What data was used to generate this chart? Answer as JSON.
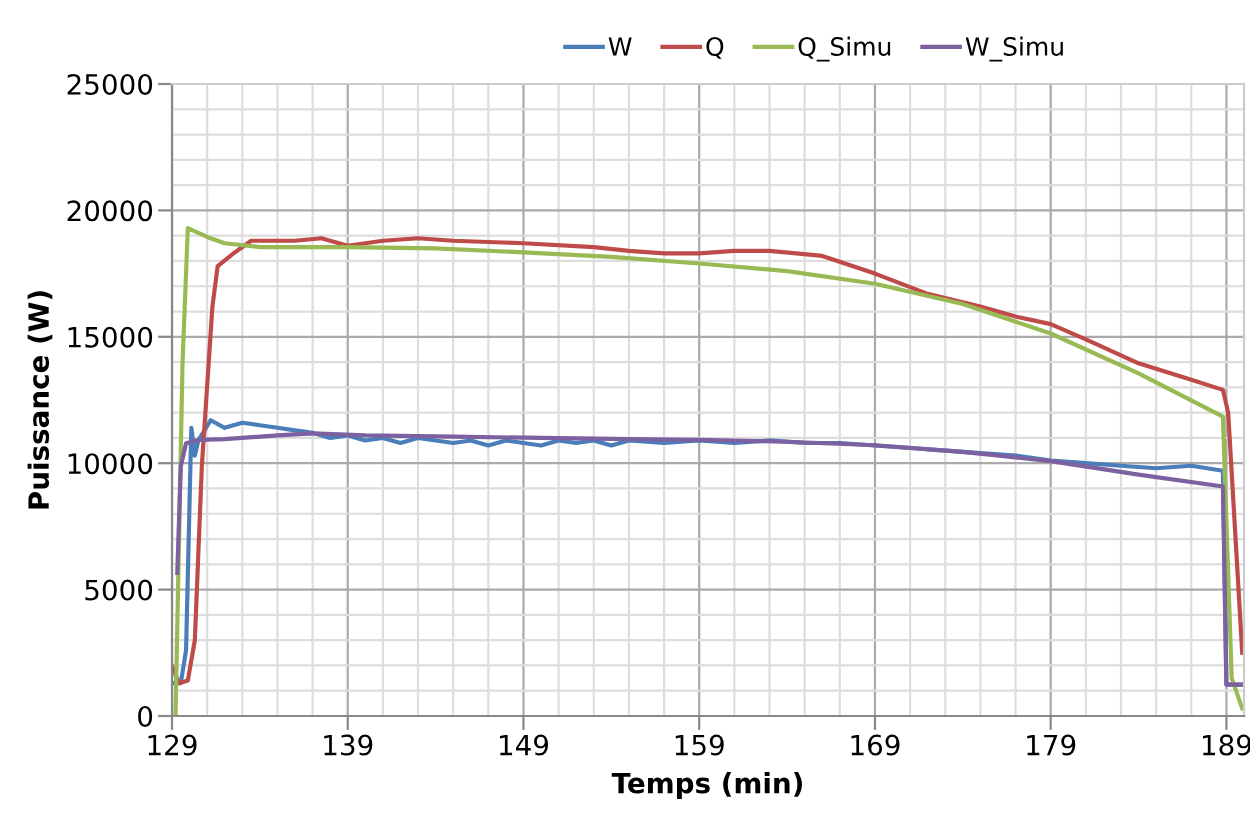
{
  "chart_data": {
    "type": "line",
    "xlabel": "Temps (min)",
    "ylabel": "Puissance (W)",
    "xlim": [
      129,
      190
    ],
    "ylim": [
      0,
      25000
    ],
    "xticks": [
      129,
      {
        "value": 131,
        "label": null
      },
      {
        "value": 133,
        "label": null
      },
      {
        "value": 135,
        "label": null
      },
      {
        "value": 137,
        "label": null
      },
      139,
      {
        "value": 141,
        "label": null
      },
      {
        "value": 143,
        "label": null
      },
      {
        "value": 145,
        "label": null
      },
      {
        "value": 147,
        "label": null
      },
      149,
      {
        "value": 151,
        "label": null
      },
      {
        "value": 153,
        "label": null
      },
      {
        "value": 155,
        "label": null
      },
      {
        "value": 157,
        "label": null
      },
      159,
      {
        "value": 161,
        "label": null
      },
      {
        "value": 163,
        "label": null
      },
      {
        "value": 165,
        "label": null
      },
      {
        "value": 167,
        "label": null
      },
      169,
      {
        "value": 171,
        "label": null
      },
      {
        "value": 173,
        "label": null
      },
      {
        "value": 175,
        "label": null
      },
      {
        "value": 177,
        "label": null
      },
      179,
      {
        "value": 181,
        "label": null
      },
      {
        "value": 183,
        "label": null
      },
      {
        "value": 185,
        "label": null
      },
      {
        "value": 187,
        "label": null
      },
      189
    ],
    "yticks": [
      0,
      {
        "value": 1000,
        "label": null
      },
      {
        "value": 2000,
        "label": null
      },
      {
        "value": 3000,
        "label": null
      },
      {
        "value": 4000,
        "label": null
      },
      5000,
      {
        "value": 6000,
        "label": null
      },
      {
        "value": 7000,
        "label": null
      },
      {
        "value": 8000,
        "label": null
      },
      {
        "value": 9000,
        "label": null
      },
      10000,
      {
        "value": 11000,
        "label": null
      },
      {
        "value": 12000,
        "label": null
      },
      {
        "value": 13000,
        "label": null
      },
      {
        "value": 14000,
        "label": null
      },
      15000,
      {
        "value": 16000,
        "label": null
      },
      {
        "value": 17000,
        "label": null
      },
      {
        "value": 18000,
        "label": null
      },
      {
        "value": 19000,
        "label": null
      },
      20000,
      {
        "value": 21000,
        "label": null
      },
      {
        "value": 22000,
        "label": null
      },
      {
        "value": 23000,
        "label": null
      },
      {
        "value": 24000,
        "label": null
      },
      25000
    ],
    "grid": true,
    "legend": "top",
    "marker": "none",
    "line_style": "solid",
    "series": [
      {
        "name": "W",
        "color": "#4a7ebb",
        "x": [
          129,
          129.5,
          129.8,
          130.1,
          130.3,
          130.5,
          131.2,
          132,
          133,
          134,
          135,
          136,
          137,
          138,
          139,
          140,
          141,
          142,
          143,
          144,
          145,
          146,
          147,
          148,
          149,
          150,
          151,
          152,
          153,
          154,
          155,
          157,
          159,
          161,
          163,
          165,
          167,
          169,
          171,
          173,
          175,
          177,
          179,
          181,
          183,
          185,
          187,
          188.8,
          189,
          189.9
        ],
        "values": [
          1300,
          1300,
          2600,
          11400,
          10300,
          10900,
          11700,
          11400,
          11600,
          11500,
          11400,
          11300,
          11200,
          11000,
          11100,
          10900,
          11000,
          10800,
          11000,
          10900,
          10800,
          10900,
          10700,
          10900,
          10800,
          10700,
          10900,
          10800,
          10900,
          10700,
          10900,
          10800,
          10900,
          10800,
          10900,
          10800,
          10800,
          10700,
          10600,
          10500,
          10400,
          10300,
          10100,
          10000,
          9900,
          9800,
          9900,
          9700,
          1240,
          1240
        ]
      },
      {
        "name": "Q",
        "color": "#be4b48",
        "x": [
          129,
          129.4,
          129.9,
          130.3,
          130.7,
          131.3,
          131.6,
          132.5,
          133.5,
          136,
          137.5,
          139,
          141,
          143,
          145,
          149,
          153,
          155,
          157,
          159,
          161,
          163,
          166,
          169,
          172,
          175,
          177,
          179,
          181,
          184,
          187,
          188.8,
          189.1,
          189.9
        ],
        "values": [
          1970,
          1300,
          1400,
          3000,
          9900,
          16200,
          17800,
          18300,
          18800,
          18800,
          18900,
          18600,
          18800,
          18900,
          18800,
          18700,
          18550,
          18400,
          18300,
          18300,
          18400,
          18400,
          18200,
          17500,
          16700,
          16200,
          15800,
          15500,
          14900,
          13950,
          13300,
          12900,
          12000,
          2500
        ]
      },
      {
        "name": "Q_Simu",
        "color": "#98b954",
        "x": [
          129.2,
          129.6,
          129.9,
          131,
          132,
          134,
          139,
          144,
          149,
          154,
          159,
          164,
          169,
          174,
          179,
          184,
          188.8,
          189.3,
          189.9
        ],
        "values": [
          0,
          14000,
          19300,
          18950,
          18700,
          18550,
          18550,
          18500,
          18340,
          18160,
          17900,
          17600,
          17100,
          16300,
          15130,
          13550,
          11840,
          1500,
          300
        ]
      },
      {
        "name": "W_Simu",
        "color": "#7d60a0",
        "x": [
          129.3,
          129.5,
          129.8,
          130.5,
          132,
          135,
          137,
          140,
          145,
          150,
          155,
          159,
          164,
          169,
          174,
          179,
          184,
          188.8,
          189,
          189.9
        ],
        "values": [
          5660,
          9870,
          10790,
          10920,
          10950,
          11100,
          11180,
          11100,
          11050,
          11000,
          10950,
          10920,
          10850,
          10710,
          10450,
          10080,
          9550,
          9080,
          1240,
          1240
        ]
      }
    ]
  }
}
